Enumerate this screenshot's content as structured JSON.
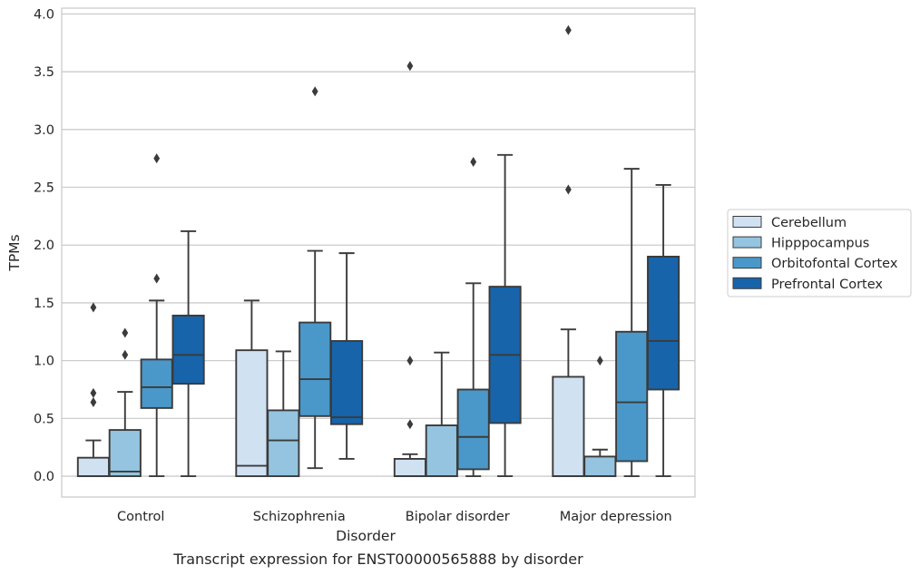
{
  "chart_data": {
    "type": "box",
    "caption": "Transcript expression for ENST00000565888 by disorder",
    "xlabel": "Disorder",
    "ylabel": "TPMs",
    "ylim": [
      -0.18,
      4.05
    ],
    "yticks": [
      "0.0",
      "0.5",
      "1.0",
      "1.5",
      "2.0",
      "2.5",
      "3.0",
      "3.5",
      "4.0"
    ],
    "categories": [
      "Control",
      "Schizophrenia",
      "Bipolar disorder",
      "Major depression"
    ],
    "grid": "horizontal",
    "legend_position": "right",
    "series": [
      {
        "name": "Cerebellum",
        "color": "#d0e1f2",
        "boxes": [
          {
            "whislo": 0.0,
            "q1": 0.0,
            "med": 0.0,
            "q3": 0.16,
            "whishi": 0.31,
            "fliers": [
              0.64,
              0.72,
              1.46
            ]
          },
          {
            "whislo": 0.0,
            "q1": 0.0,
            "med": 0.09,
            "q3": 1.09,
            "whishi": 1.52,
            "fliers": []
          },
          {
            "whislo": 0.0,
            "q1": 0.0,
            "med": 0.0,
            "q3": 0.15,
            "whishi": 0.19,
            "fliers": [
              0.45,
              1.0,
              3.55
            ]
          },
          {
            "whislo": 0.0,
            "q1": 0.0,
            "med": 0.0,
            "q3": 0.86,
            "whishi": 1.27,
            "fliers": [
              2.48,
              3.86
            ]
          }
        ]
      },
      {
        "name": "Hipppocampus",
        "color": "#94c4df",
        "boxes": [
          {
            "whislo": 0.0,
            "q1": 0.0,
            "med": 0.04,
            "q3": 0.4,
            "whishi": 0.73,
            "fliers": [
              1.05,
              1.24
            ]
          },
          {
            "whislo": 0.0,
            "q1": 0.0,
            "med": 0.31,
            "q3": 0.57,
            "whishi": 1.08,
            "fliers": []
          },
          {
            "whislo": 0.0,
            "q1": 0.0,
            "med": 0.0,
            "q3": 0.44,
            "whishi": 1.07,
            "fliers": []
          },
          {
            "whislo": 0.0,
            "q1": 0.0,
            "med": 0.0,
            "q3": 0.17,
            "whishi": 0.23,
            "fliers": [
              1.0
            ]
          }
        ]
      },
      {
        "name": "Orbitofontal Cortex",
        "color": "#4a98c9",
        "boxes": [
          {
            "whislo": 0.0,
            "q1": 0.59,
            "med": 0.77,
            "q3": 1.01,
            "whishi": 1.52,
            "fliers": [
              1.71,
              2.75
            ]
          },
          {
            "whislo": 0.07,
            "q1": 0.52,
            "med": 0.84,
            "q3": 1.33,
            "whishi": 1.95,
            "fliers": [
              3.33
            ]
          },
          {
            "whislo": 0.0,
            "q1": 0.06,
            "med": 0.34,
            "q3": 0.75,
            "whishi": 1.67,
            "fliers": [
              2.72
            ]
          },
          {
            "whislo": 0.0,
            "q1": 0.13,
            "med": 0.64,
            "q3": 1.25,
            "whishi": 2.66,
            "fliers": []
          }
        ]
      },
      {
        "name": "Prefrontal Cortex",
        "color": "#1764ab",
        "boxes": [
          {
            "whislo": 0.0,
            "q1": 0.8,
            "med": 1.05,
            "q3": 1.39,
            "whishi": 2.12,
            "fliers": []
          },
          {
            "whislo": 0.15,
            "q1": 0.45,
            "med": 0.51,
            "q3": 1.17,
            "whishi": 1.93,
            "fliers": []
          },
          {
            "whislo": 0.0,
            "q1": 0.46,
            "med": 1.05,
            "q3": 1.64,
            "whishi": 2.78,
            "fliers": []
          },
          {
            "whislo": 0.0,
            "q1": 0.75,
            "med": 1.17,
            "q3": 1.9,
            "whishi": 2.52,
            "fliers": []
          }
        ]
      }
    ]
  }
}
